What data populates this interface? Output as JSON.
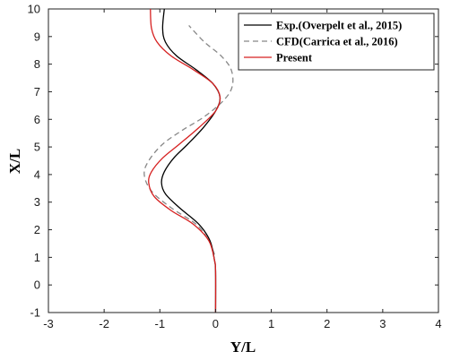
{
  "chart_data": {
    "type": "line",
    "title": "",
    "xlabel": "Y/L",
    "ylabel": "X/L",
    "xlim": [
      -3,
      4
    ],
    "ylim": [
      -1,
      10
    ],
    "xticks": [
      "-3",
      "-2",
      "-1",
      "0",
      "1",
      "2",
      "3",
      "4"
    ],
    "yticks": [
      "-1",
      "0",
      "1",
      "2",
      "3",
      "4",
      "5",
      "6",
      "7",
      "8",
      "9",
      "10"
    ],
    "grid": false,
    "legend_position": "top-right",
    "series": [
      {
        "name": "Exp.(Overpelt et al., 2015)",
        "color": "#000000",
        "style": "solid",
        "points": [
          [
            0,
            -1
          ],
          [
            0,
            0.5
          ],
          [
            -0.02,
            0.9
          ],
          [
            -0.1,
            1.6
          ],
          [
            -0.3,
            2.2
          ],
          [
            -0.65,
            2.8
          ],
          [
            -0.9,
            3.3
          ],
          [
            -0.97,
            3.7
          ],
          [
            -0.92,
            4.1
          ],
          [
            -0.75,
            4.6
          ],
          [
            -0.5,
            5.1
          ],
          [
            -0.22,
            5.7
          ],
          [
            0,
            6.3
          ],
          [
            0.08,
            6.8
          ],
          [
            -0.05,
            7.3
          ],
          [
            -0.35,
            7.8
          ],
          [
            -0.7,
            8.3
          ],
          [
            -0.9,
            8.8
          ],
          [
            -0.95,
            9.3
          ],
          [
            -0.92,
            10
          ]
        ]
      },
      {
        "name": "CFD(Carrica et al., 2016)",
        "color": "#888888",
        "style": "dashed",
        "points": [
          [
            -0.02,
            1.1
          ],
          [
            -0.12,
            1.6
          ],
          [
            -0.35,
            2.2
          ],
          [
            -0.8,
            2.8
          ],
          [
            -1.15,
            3.4
          ],
          [
            -1.28,
            4
          ],
          [
            -1.2,
            4.5
          ],
          [
            -0.95,
            5.1
          ],
          [
            -0.6,
            5.6
          ],
          [
            -0.2,
            6.1
          ],
          [
            0.15,
            6.7
          ],
          [
            0.3,
            7.2
          ],
          [
            0.28,
            7.8
          ],
          [
            0.1,
            8.3
          ],
          [
            -0.2,
            8.8
          ],
          [
            -0.48,
            9.4
          ]
        ]
      },
      {
        "name": "Present",
        "color": "#d62020",
        "style": "solid",
        "points": [
          [
            0,
            -1
          ],
          [
            0,
            0.5
          ],
          [
            -0.02,
            0.9
          ],
          [
            -0.12,
            1.6
          ],
          [
            -0.4,
            2.2
          ],
          [
            -0.8,
            2.7
          ],
          [
            -1.1,
            3.2
          ],
          [
            -1.2,
            3.7
          ],
          [
            -1.15,
            4.1
          ],
          [
            -0.95,
            4.6
          ],
          [
            -0.65,
            5.1
          ],
          [
            -0.3,
            5.7
          ],
          [
            0,
            6.3
          ],
          [
            0.08,
            6.8
          ],
          [
            -0.05,
            7.3
          ],
          [
            -0.4,
            7.8
          ],
          [
            -0.8,
            8.3
          ],
          [
            -1.05,
            8.8
          ],
          [
            -1.15,
            9.3
          ],
          [
            -1.17,
            10
          ]
        ]
      }
    ]
  }
}
